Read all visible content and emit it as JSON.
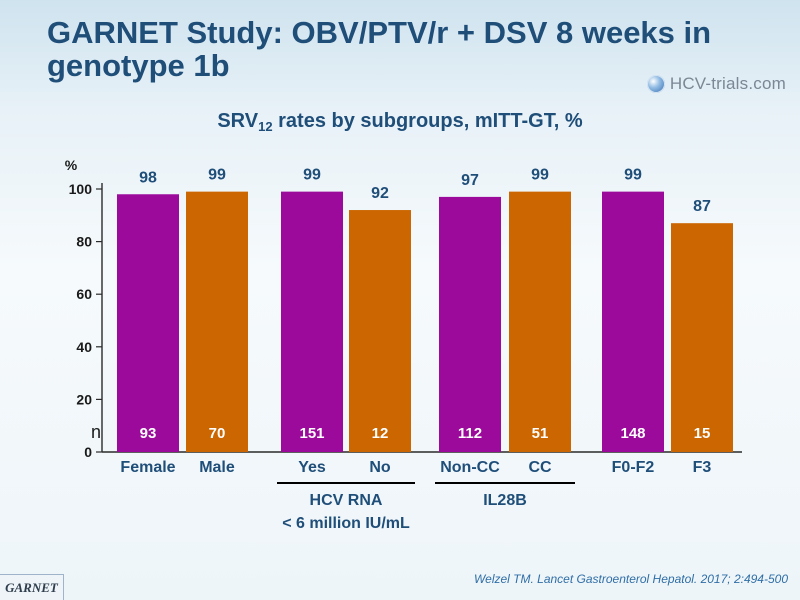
{
  "slide": {
    "title": "GARNET Study: OBV/PTV/r + DSV 8 weeks in genotype 1b",
    "brand": "HCV-trials.com",
    "brand_icon": "hcv-trials-logo-icon",
    "footer_badge": "GARNET",
    "reference": "Welzel TM. Lancet Gastroenterol Hepatol. 2017; 2:494-500"
  },
  "chart_data": {
    "type": "bar",
    "title_main": "SRV",
    "title_subscript": "12",
    "title_rest": " rates by subgroups, mITT-GT, %",
    "ylabel": "%",
    "ylim": [
      0,
      100
    ],
    "yticks": [
      0,
      20,
      40,
      60,
      80,
      100
    ],
    "n_label": "n",
    "categories": [
      "Female",
      "Male",
      "Yes",
      "No",
      "Non-CC",
      "CC",
      "F0-F2",
      "F3"
    ],
    "values": [
      98,
      99,
      99,
      92,
      97,
      99,
      99,
      87
    ],
    "n": [
      93,
      70,
      151,
      12,
      112,
      51,
      148,
      15
    ],
    "colors": [
      "#9b0a9b",
      "#cc6600",
      "#9b0a9b",
      "#cc6600",
      "#9b0a9b",
      "#cc6600",
      "#9b0a9b",
      "#cc6600"
    ],
    "group_labels": [
      {
        "text": "HCV RNA",
        "line2": "< 6 million IU/mL",
        "covers": [
          2,
          3
        ]
      },
      {
        "text": "IL28B",
        "line2": "",
        "covers": [
          4,
          5
        ]
      }
    ]
  }
}
